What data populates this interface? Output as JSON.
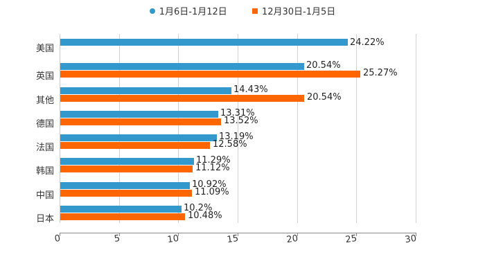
{
  "legend": [
    {
      "label": "1月6日-1月12日",
      "color": "#3399cc",
      "marker": "circle"
    },
    {
      "label": "12月30日-1月5日",
      "color": "#ff6600",
      "marker": "square"
    }
  ],
  "axis": {
    "x_ticks": [
      "0",
      "5",
      "10",
      "15",
      "20",
      "25",
      "30"
    ]
  },
  "rows": [
    {
      "category": "美国",
      "a": "24.22%",
      "b": ""
    },
    {
      "category": "英国",
      "a": "20.54%",
      "b": "25.27%"
    },
    {
      "category": "其他",
      "a": "14.43%",
      "b": "20.54%"
    },
    {
      "category": "德国",
      "a": "13.31%",
      "b": "13.52%"
    },
    {
      "category": "法国",
      "a": "13.19%",
      "b": "12.58%"
    },
    {
      "category": "韩国",
      "a": "11.29%",
      "b": "11.12%"
    },
    {
      "category": "中国",
      "a": "10.92%",
      "b": "11.09%"
    },
    {
      "category": "日本",
      "a": "10.2%",
      "b": "10.48%"
    }
  ],
  "chart_data": {
    "type": "bar",
    "orientation": "horizontal",
    "title": "",
    "xlabel": "",
    "ylabel": "",
    "xlim": [
      0,
      30
    ],
    "x_ticks": [
      0,
      5,
      10,
      15,
      20,
      25,
      30
    ],
    "grid": true,
    "legend_position": "top",
    "categories": [
      "美国",
      "英国",
      "其他",
      "德国",
      "法国",
      "韩国",
      "中国",
      "日本"
    ],
    "series": [
      {
        "name": "1月6日-1月12日",
        "color": "#3399cc",
        "values": [
          24.22,
          20.54,
          14.43,
          13.31,
          13.19,
          11.29,
          10.92,
          10.2
        ]
      },
      {
        "name": "12月30日-1月5日",
        "color": "#ff6600",
        "values": [
          null,
          25.27,
          20.54,
          13.52,
          12.58,
          11.12,
          11.09,
          10.48
        ]
      }
    ],
    "value_labels_suffix": "%"
  }
}
